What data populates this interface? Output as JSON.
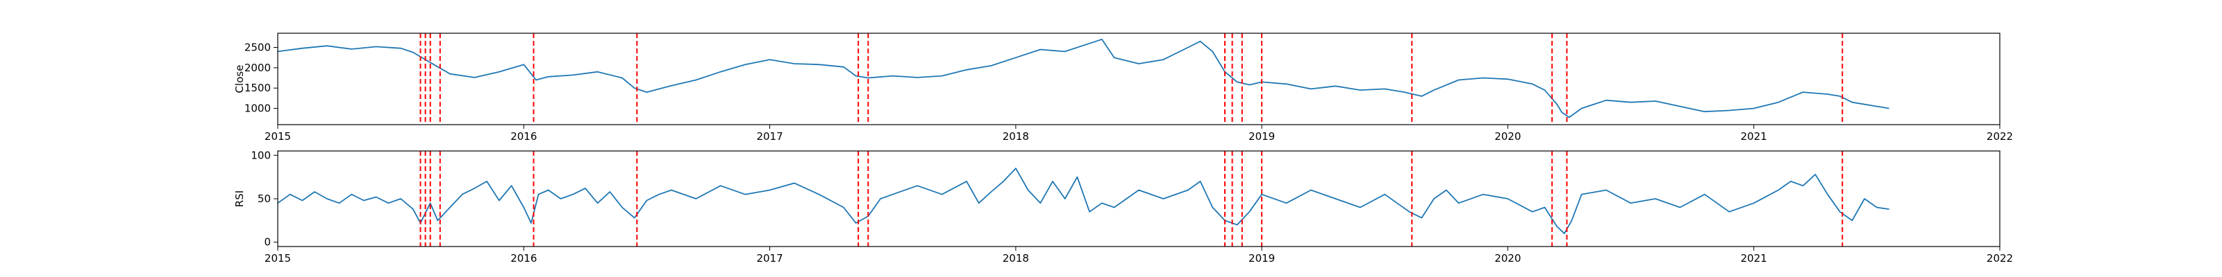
{
  "chart_data": [
    {
      "type": "line",
      "ylabel": "Close",
      "xlim": [
        2015.0,
        2022.0
      ],
      "ylim": [
        600,
        2850
      ],
      "x_ticks": [
        2015,
        2016,
        2017,
        2018,
        2019,
        2020,
        2021,
        2022
      ],
      "x_tick_labels": [
        "2015",
        "2016",
        "2017",
        "2018",
        "2019",
        "2020",
        "2021",
        "2022"
      ],
      "y_ticks": [
        1000,
        1500,
        2000,
        2500
      ],
      "y_tick_labels": [
        "1000",
        "1500",
        "2000",
        "2500"
      ],
      "grid": false,
      "series": [
        {
          "color": "#1f77b4",
          "x": [
            2015.0,
            2015.1,
            2015.2,
            2015.3,
            2015.4,
            2015.5,
            2015.55,
            2015.6,
            2015.64,
            2015.7,
            2015.8,
            2015.9,
            2016.0,
            2016.05,
            2016.1,
            2016.2,
            2016.3,
            2016.4,
            2016.45,
            2016.5,
            2016.6,
            2016.7,
            2016.8,
            2016.9,
            2017.0,
            2017.1,
            2017.2,
            2017.3,
            2017.35,
            2017.4,
            2017.5,
            2017.6,
            2017.7,
            2017.8,
            2017.9,
            2018.0,
            2018.1,
            2018.2,
            2018.3,
            2018.35,
            2018.4,
            2018.5,
            2018.6,
            2018.7,
            2018.75,
            2018.8,
            2018.85,
            2018.9,
            2018.95,
            2019.0,
            2019.1,
            2019.2,
            2019.3,
            2019.4,
            2019.5,
            2019.58,
            2019.65,
            2019.7,
            2019.8,
            2019.9,
            2020.0,
            2020.1,
            2020.15,
            2020.2,
            2020.22,
            2020.25,
            2020.3,
            2020.4,
            2020.5,
            2020.6,
            2020.7,
            2020.8,
            2020.9,
            2021.0,
            2021.1,
            2021.2,
            2021.3,
            2021.35,
            2021.4,
            2021.5,
            2021.55
          ],
          "y": [
            2400,
            2480,
            2540,
            2460,
            2520,
            2480,
            2380,
            2200,
            2060,
            1850,
            1760,
            1900,
            2080,
            1700,
            1780,
            1820,
            1900,
            1750,
            1500,
            1400,
            1560,
            1700,
            1900,
            2080,
            2200,
            2100,
            2080,
            2020,
            1800,
            1750,
            1800,
            1760,
            1800,
            1950,
            2050,
            2250,
            2450,
            2400,
            2600,
            2700,
            2250,
            2100,
            2200,
            2500,
            2650,
            2400,
            1900,
            1650,
            1580,
            1650,
            1600,
            1480,
            1550,
            1450,
            1480,
            1400,
            1300,
            1450,
            1700,
            1750,
            1720,
            1600,
            1450,
            1100,
            900,
            780,
            1000,
            1200,
            1150,
            1180,
            1050,
            920,
            950,
            1000,
            1150,
            1400,
            1350,
            1300,
            1150,
            1050,
            1000
          ]
        }
      ],
      "vlines": [
        2015.58,
        2015.6,
        2015.62,
        2015.66,
        2016.04,
        2016.46,
        2017.36,
        2017.4,
        2018.85,
        2018.88,
        2018.92,
        2019.0,
        2019.61,
        2020.18,
        2020.24,
        2021.36
      ],
      "vline_color": "#ff0000"
    },
    {
      "type": "line",
      "ylabel": "RSI",
      "xlim": [
        2015.0,
        2022.0
      ],
      "ylim": [
        -5,
        105
      ],
      "x_ticks": [
        2015,
        2016,
        2017,
        2018,
        2019,
        2020,
        2021,
        2022
      ],
      "x_tick_labels": [
        "2015",
        "2016",
        "2017",
        "2018",
        "2019",
        "2020",
        "2021",
        "2022"
      ],
      "y_ticks": [
        0,
        50,
        100
      ],
      "y_tick_labels": [
        "0",
        "50",
        "100"
      ],
      "grid": false,
      "series": [
        {
          "color": "#1f77b4",
          "x": [
            2015.0,
            2015.05,
            2015.1,
            2015.15,
            2015.2,
            2015.25,
            2015.3,
            2015.35,
            2015.4,
            2015.45,
            2015.5,
            2015.55,
            2015.58,
            2015.62,
            2015.65,
            2015.7,
            2015.75,
            2015.8,
            2015.85,
            2015.9,
            2015.95,
            2016.0,
            2016.03,
            2016.06,
            2016.1,
            2016.15,
            2016.2,
            2016.25,
            2016.3,
            2016.35,
            2016.4,
            2016.45,
            2016.5,
            2016.55,
            2016.6,
            2016.7,
            2016.8,
            2016.9,
            2017.0,
            2017.1,
            2017.2,
            2017.3,
            2017.35,
            2017.4,
            2017.45,
            2017.5,
            2017.6,
            2017.7,
            2017.8,
            2017.85,
            2017.9,
            2017.95,
            2018.0,
            2018.05,
            2018.1,
            2018.15,
            2018.2,
            2018.25,
            2018.3,
            2018.35,
            2018.4,
            2018.5,
            2018.6,
            2018.7,
            2018.75,
            2018.8,
            2018.85,
            2018.9,
            2018.95,
            2019.0,
            2019.1,
            2019.2,
            2019.3,
            2019.4,
            2019.5,
            2019.55,
            2019.6,
            2019.65,
            2019.7,
            2019.75,
            2019.8,
            2019.9,
            2020.0,
            2020.1,
            2020.15,
            2020.2,
            2020.23,
            2020.26,
            2020.3,
            2020.4,
            2020.5,
            2020.6,
            2020.7,
            2020.8,
            2020.9,
            2021.0,
            2021.1,
            2021.15,
            2021.2,
            2021.25,
            2021.3,
            2021.35,
            2021.4,
            2021.45,
            2021.5,
            2021.55
          ],
          "y": [
            45,
            55,
            48,
            58,
            50,
            45,
            55,
            48,
            52,
            45,
            50,
            38,
            22,
            45,
            25,
            40,
            55,
            62,
            70,
            48,
            65,
            40,
            22,
            55,
            60,
            50,
            55,
            62,
            45,
            58,
            40,
            28,
            48,
            55,
            60,
            50,
            65,
            55,
            60,
            68,
            55,
            40,
            22,
            30,
            50,
            55,
            65,
            55,
            70,
            45,
            58,
            70,
            85,
            60,
            45,
            70,
            50,
            75,
            35,
            45,
            40,
            60,
            50,
            60,
            70,
            40,
            25,
            20,
            35,
            55,
            45,
            60,
            50,
            40,
            55,
            45,
            35,
            28,
            50,
            60,
            45,
            55,
            50,
            35,
            40,
            18,
            10,
            25,
            55,
            60,
            45,
            50,
            40,
            55,
            35,
            45,
            60,
            70,
            65,
            78,
            55,
            35,
            25,
            50,
            40,
            38
          ]
        }
      ],
      "vlines": [
        2015.58,
        2015.6,
        2015.62,
        2015.66,
        2016.04,
        2016.46,
        2017.36,
        2017.4,
        2018.85,
        2018.88,
        2018.92,
        2019.0,
        2019.61,
        2020.18,
        2020.24,
        2021.36
      ],
      "vline_color": "#ff0000"
    }
  ]
}
